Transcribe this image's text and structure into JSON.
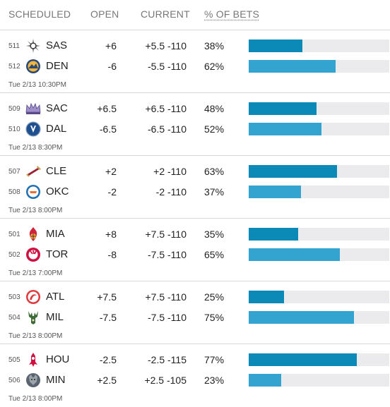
{
  "header": {
    "scheduled": "SCHEDULED",
    "open": "OPEN",
    "current": "CURRENT",
    "pct_bets": "% OF BETS"
  },
  "colors": {
    "bar_away": "#0c8ab7",
    "bar_home": "#33a3cf",
    "bar_track": "#ebebed"
  },
  "games": [
    {
      "time": "Tue 2/13 10:30PM",
      "teams": [
        {
          "rot": "511",
          "abbr": "SAS",
          "logo": "spurs-logo-icon",
          "open": "+6",
          "current": "+5.5 -110",
          "pct": "38%",
          "pct_value": 38
        },
        {
          "rot": "512",
          "abbr": "DEN",
          "logo": "nuggets-logo-icon",
          "open": "-6",
          "current": "-5.5 -110",
          "pct": "62%",
          "pct_value": 62
        }
      ]
    },
    {
      "time": "Tue 2/13 8:30PM",
      "teams": [
        {
          "rot": "509",
          "abbr": "SAC",
          "logo": "kings-logo-icon",
          "open": "+6.5",
          "current": "+6.5 -110",
          "pct": "48%",
          "pct_value": 48
        },
        {
          "rot": "510",
          "abbr": "DAL",
          "logo": "mavericks-logo-icon",
          "open": "-6.5",
          "current": "-6.5 -110",
          "pct": "52%",
          "pct_value": 52
        }
      ]
    },
    {
      "time": "Tue 2/13 8:00PM",
      "teams": [
        {
          "rot": "507",
          "abbr": "CLE",
          "logo": "cavaliers-logo-icon",
          "open": "+2",
          "current": "+2 -110",
          "pct": "63%",
          "pct_value": 63
        },
        {
          "rot": "508",
          "abbr": "OKC",
          "logo": "thunder-logo-icon",
          "open": "-2",
          "current": "-2 -110",
          "pct": "37%",
          "pct_value": 37
        }
      ]
    },
    {
      "time": "Tue 2/13 7:00PM",
      "teams": [
        {
          "rot": "501",
          "abbr": "MIA",
          "logo": "heat-logo-icon",
          "open": "+8",
          "current": "+7.5 -110",
          "pct": "35%",
          "pct_value": 35
        },
        {
          "rot": "502",
          "abbr": "TOR",
          "logo": "raptors-logo-icon",
          "open": "-8",
          "current": "-7.5 -110",
          "pct": "65%",
          "pct_value": 65
        }
      ]
    },
    {
      "time": "Tue 2/13 8:00PM",
      "teams": [
        {
          "rot": "503",
          "abbr": "ATL",
          "logo": "hawks-logo-icon",
          "open": "+7.5",
          "current": "+7.5 -110",
          "pct": "25%",
          "pct_value": 25
        },
        {
          "rot": "504",
          "abbr": "MIL",
          "logo": "bucks-logo-icon",
          "open": "-7.5",
          "current": "-7.5 -110",
          "pct": "75%",
          "pct_value": 75
        }
      ]
    },
    {
      "time": "Tue 2/13 8:00PM",
      "teams": [
        {
          "rot": "505",
          "abbr": "HOU",
          "logo": "rockets-logo-icon",
          "open": "-2.5",
          "current": "-2.5 -115",
          "pct": "77%",
          "pct_value": 77
        },
        {
          "rot": "506",
          "abbr": "MIN",
          "logo": "timberwolves-logo-icon",
          "open": "+2.5",
          "current": "+2.5 -105",
          "pct": "23%",
          "pct_value": 23
        }
      ]
    }
  ]
}
